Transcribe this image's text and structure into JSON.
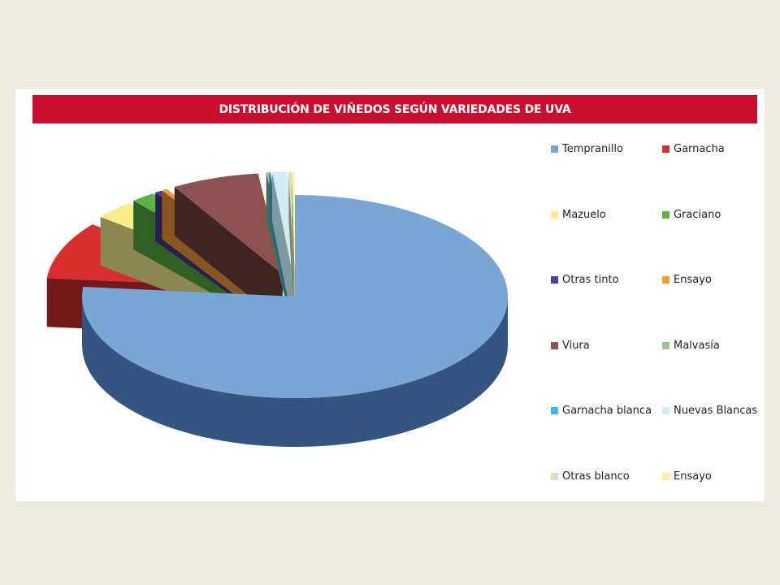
{
  "chart_data": {
    "type": "pie",
    "title": "DISTRIBUCIÓN DE VIÑEDOS SEGÚN VARIEDADES DE UVA",
    "legend_position": "right",
    "three_d": true,
    "exploded": true,
    "slices": [
      {
        "label": "Tempranillo",
        "value": 75.0,
        "color": "#7aa6d6",
        "side": "#34557f"
      },
      {
        "label": "Garnacha",
        "value": 9.0,
        "color": "#d92e2e",
        "side": "#731919"
      },
      {
        "label": "Mazuelo",
        "value": 3.0,
        "color": "#f9ed8a",
        "side": "#8c8650"
      },
      {
        "label": "Graciano",
        "value": 1.8,
        "color": "#5cb346",
        "side": "#2f6125"
      },
      {
        "label": "Otras tinto",
        "value": 0.5,
        "color": "#4b3f96",
        "side": "#262050"
      },
      {
        "label": "Ensayo",
        "value": 0.4,
        "color": "#f59a3b",
        "side": "#8a5620"
      },
      {
        "label": "Viura",
        "value": 6.5,
        "color": "#8c5150",
        "side": "#3f2424"
      },
      {
        "label": "Malvasía",
        "value": 0.2,
        "color": "#9fc192",
        "side": "#536b4c"
      },
      {
        "label": "Garnacha blanca",
        "value": 0.1,
        "color": "#3db8e8",
        "side": "#1f6a87"
      },
      {
        "label": "Nuevas Blancas",
        "value": 1.1,
        "color": "#d2ecf2",
        "side": "#7d9aa1"
      },
      {
        "label": "Otras blanco",
        "value": 0.2,
        "color": "#cfe3c5",
        "side": "#7b8c73"
      },
      {
        "label": "Ensayo",
        "value": 0.2,
        "color": "#fbf19a",
        "side": "#979153"
      }
    ]
  }
}
